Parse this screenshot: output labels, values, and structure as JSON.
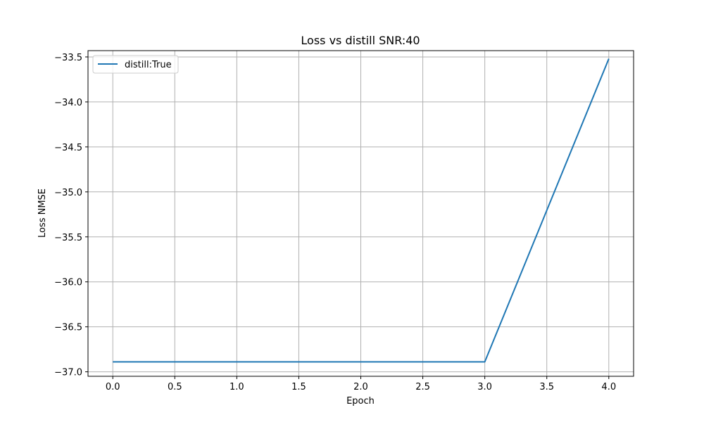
{
  "chart_data": {
    "type": "line",
    "title": "Loss vs distill SNR:40",
    "xlabel": "Epoch",
    "ylabel": "Loss NMSE",
    "xlim": [
      -0.2,
      4.2
    ],
    "ylim": [
      -37.05,
      -33.43
    ],
    "x_ticks": [
      0.0,
      0.5,
      1.0,
      1.5,
      2.0,
      2.5,
      3.0,
      3.5,
      4.0
    ],
    "x_tick_labels": [
      "0.0",
      "0.5",
      "1.0",
      "1.5",
      "2.0",
      "2.5",
      "3.0",
      "3.5",
      "4.0"
    ],
    "y_ticks": [
      -33.5,
      -34.0,
      -34.5,
      -35.0,
      -35.5,
      -36.0,
      -36.5,
      -37.0
    ],
    "y_tick_labels": [
      "−33.5",
      "−34.0",
      "−34.5",
      "−35.0",
      "−35.5",
      "−36.0",
      "−36.5",
      "−37.0"
    ],
    "grid": true,
    "legend_position": "upper-left",
    "series": [
      {
        "name": "distill:True",
        "color": "#1f77b4",
        "x": [
          0,
          1,
          2,
          3,
          4
        ],
        "values": [
          -36.89,
          -36.89,
          -36.89,
          -36.89,
          -33.52
        ]
      }
    ]
  }
}
